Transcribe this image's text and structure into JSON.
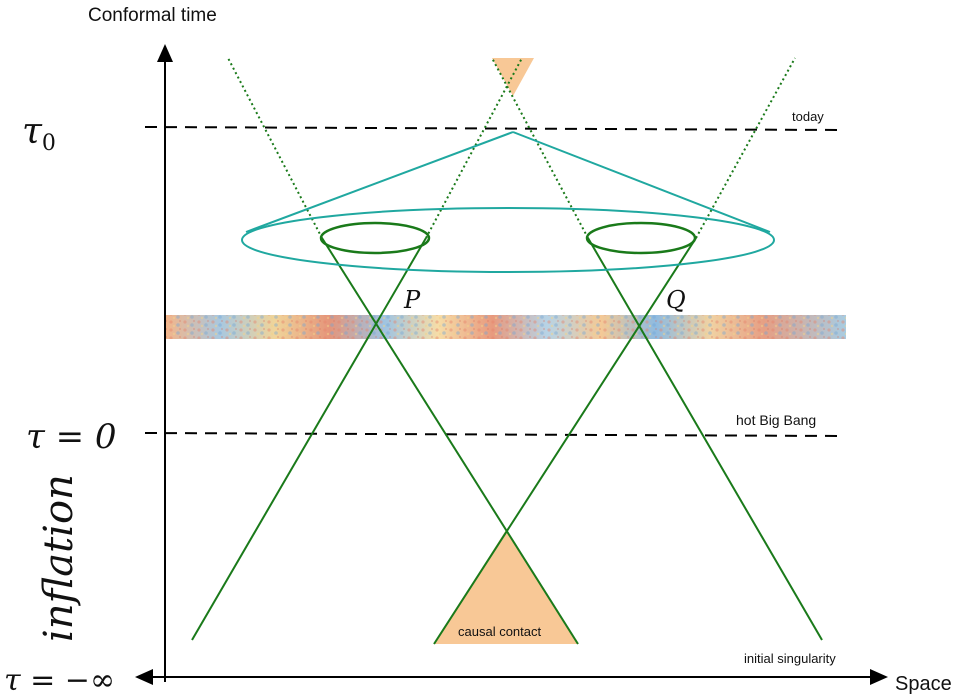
{
  "axes": {
    "vertical_label": "Conformal time",
    "horizontal_label": "Space"
  },
  "tau_labels": {
    "tau": "τ",
    "tau0_sub": "0",
    "tau_zero": "τ = 0",
    "tau_neg_inf": "τ = −∞"
  },
  "era_label": "inflation",
  "line_labels": {
    "today": "today",
    "hot_big_bang": "hot Big Bang",
    "initial_singularity": "initial singularity"
  },
  "points": {
    "p": "P",
    "q": "Q"
  },
  "regions": {
    "causal_contact": "causal contact"
  },
  "colors": {
    "green": "#1a7a1a",
    "teal": "#20a8a0",
    "orange_fill": "#f8c896",
    "axis": "#000000"
  }
}
